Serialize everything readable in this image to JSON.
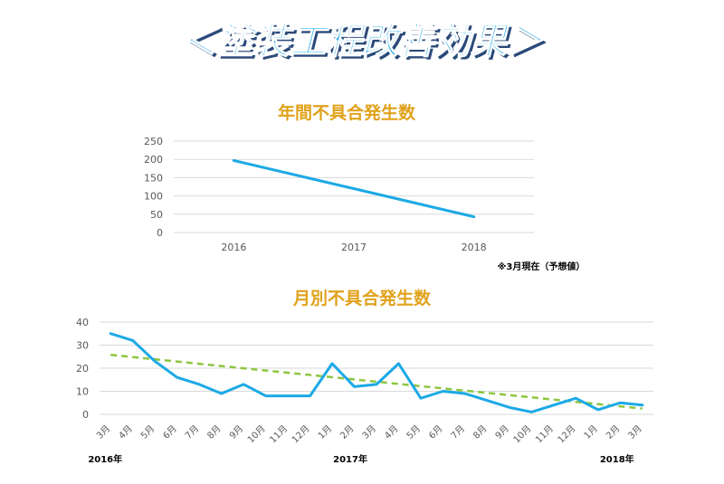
{
  "page_title": "＜塗装工程改善効果＞",
  "colors": {
    "title_fill": "#1aa6e8",
    "title_shadow": "#2b4a7a",
    "chart_title": "#e0a21c",
    "line": "#1ca9e6",
    "trend": "#8cc63f",
    "grid": "#d9d9d9",
    "tick_text": "#595959"
  },
  "chart_data": [
    {
      "type": "line",
      "title": "年間不具合発生数",
      "x": [
        "2016",
        "2017",
        "2018"
      ],
      "series": [
        {
          "values": [
            197,
            120,
            43
          ]
        }
      ],
      "ylim": [
        0,
        250
      ],
      "yticks": [
        0,
        50,
        100,
        150,
        200,
        250
      ],
      "grid": true,
      "annotation": "※3月現在（予想値）"
    },
    {
      "type": "line",
      "title": "月別不具合発生数",
      "x": [
        "3月",
        "4月",
        "5月",
        "6月",
        "7月",
        "8月",
        "9月",
        "10月",
        "11月",
        "12月",
        "1月",
        "2月",
        "3月",
        "4月",
        "5月",
        "6月",
        "7月",
        "8月",
        "9月",
        "10月",
        "11月",
        "12月",
        "1月",
        "2月",
        "3月"
      ],
      "series": [
        {
          "values": [
            35,
            32,
            23,
            16,
            13,
            9,
            13,
            8,
            8,
            8,
            22,
            12,
            13,
            22,
            7,
            10,
            9,
            6,
            3,
            1,
            4,
            7,
            2,
            5,
            4
          ]
        }
      ],
      "trendline": {
        "type": "linear",
        "start": 25.8,
        "end": 2.5
      },
      "ylim": [
        0,
        40
      ],
      "yticks": [
        0,
        10,
        20,
        30,
        40
      ],
      "grid": true,
      "year_labels": [
        "2016年",
        "2017年",
        "2018年"
      ]
    }
  ]
}
